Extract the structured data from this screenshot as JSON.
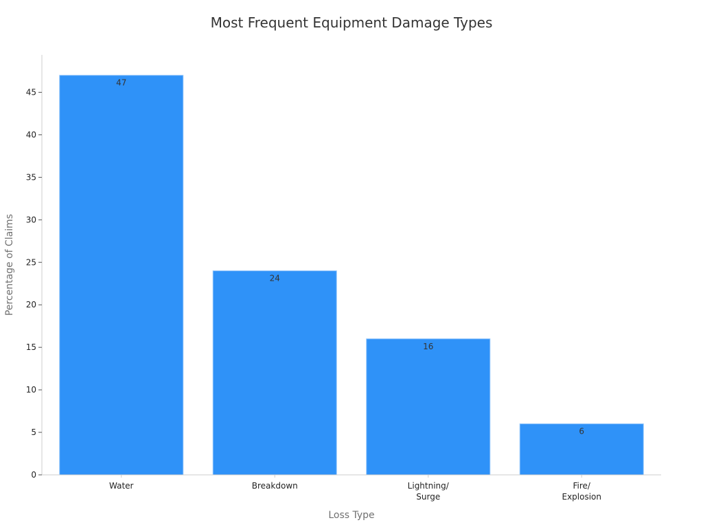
{
  "chart_data": {
    "type": "bar",
    "title": "Most Frequent Equipment Damage Types",
    "xlabel": "Loss Type",
    "ylabel": "Percentage of Claims",
    "categories": [
      [
        "Water"
      ],
      [
        "Breakdown"
      ],
      [
        "Lightning/",
        "Surge"
      ],
      [
        "Fire/",
        "Explosion"
      ]
    ],
    "values": [
      47,
      24,
      16,
      6
    ],
    "ylim": [
      0,
      49.4
    ],
    "yticks": [
      0,
      5,
      10,
      15,
      20,
      25,
      30,
      35,
      40,
      45
    ],
    "grid": false,
    "legend": "none",
    "colors": {
      "bar": "#2f92f8",
      "bar_edge": "#8ec3fb",
      "axis": "#cccccc"
    }
  }
}
